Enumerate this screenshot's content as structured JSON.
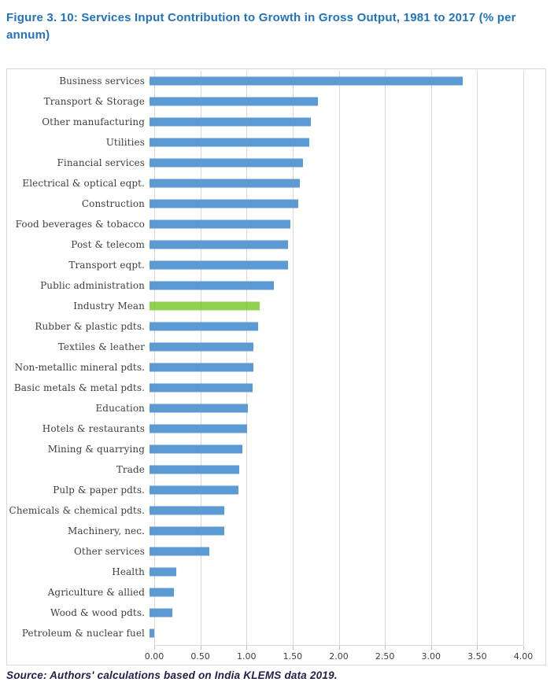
{
  "figure": {
    "title": "Figure 3. 10: Services Input Contribution to Growth in Gross Output, 1981 to 2017 (% per annum)",
    "source": "Source: Authors' calculations based on India KLEMS data 2019."
  },
  "colors": {
    "title_blue": "#2273BE",
    "bar_blue": "#5B9BD5",
    "bar_green": "#92D050",
    "gridline": "#D9D9D9",
    "label_gray": "#3F3F3F",
    "source_navy": "#21214B"
  },
  "chart_data": {
    "type": "bar",
    "orientation": "horizontal",
    "title": "Services Input Contribution to Growth in Gross Output, 1981 to 2017 (% per annum)",
    "xlabel": "",
    "ylabel": "",
    "xlim": [
      0,
      4
    ],
    "grid": true,
    "x_tick_labels": [
      "0.00",
      "0.50",
      "1.00",
      "1.50",
      "2.00",
      "2.50",
      "3.00",
      "3.50",
      "4.00"
    ],
    "x_tick_values": [
      0,
      0.5,
      1.0,
      1.5,
      2.0,
      2.5,
      3.0,
      3.5,
      4.0
    ],
    "categories": [
      "Business services",
      "Transport & Storage",
      "Other manufacturing",
      "Utilities",
      "Financial services",
      "Electrical & optical eqpt.",
      "Construction",
      "Food beverages & tobacco",
      "Post & telecom",
      "Transport eqpt.",
      "Public administration",
      "Industry Mean",
      "Rubber & plastic pdts.",
      "Textiles & leather",
      "Non-metallic mineral pdts.",
      "Basic metals & metal pdts.",
      "Education",
      "Hotels & restaurants",
      "Mining & quarrying",
      "Trade",
      "Pulp & paper pdts.",
      "Chemicals & chemical pdts.",
      "Machinery, nec.",
      "Other services",
      "Health",
      "Agriculture & allied",
      "Wood & wood pdts.",
      "Petroleum & nuclear fuel"
    ],
    "values": [
      3.35,
      1.8,
      1.73,
      1.71,
      1.64,
      1.61,
      1.59,
      1.51,
      1.48,
      1.48,
      1.33,
      1.18,
      1.16,
      1.11,
      1.11,
      1.1,
      1.05,
      1.04,
      0.99,
      0.96,
      0.95,
      0.8,
      0.8,
      0.64,
      0.29,
      0.26,
      0.24,
      0.05
    ],
    "highlight_category": "Industry Mean",
    "highlight_color": "#92D050",
    "bar_color": "#5B9BD5",
    "legend": null
  }
}
